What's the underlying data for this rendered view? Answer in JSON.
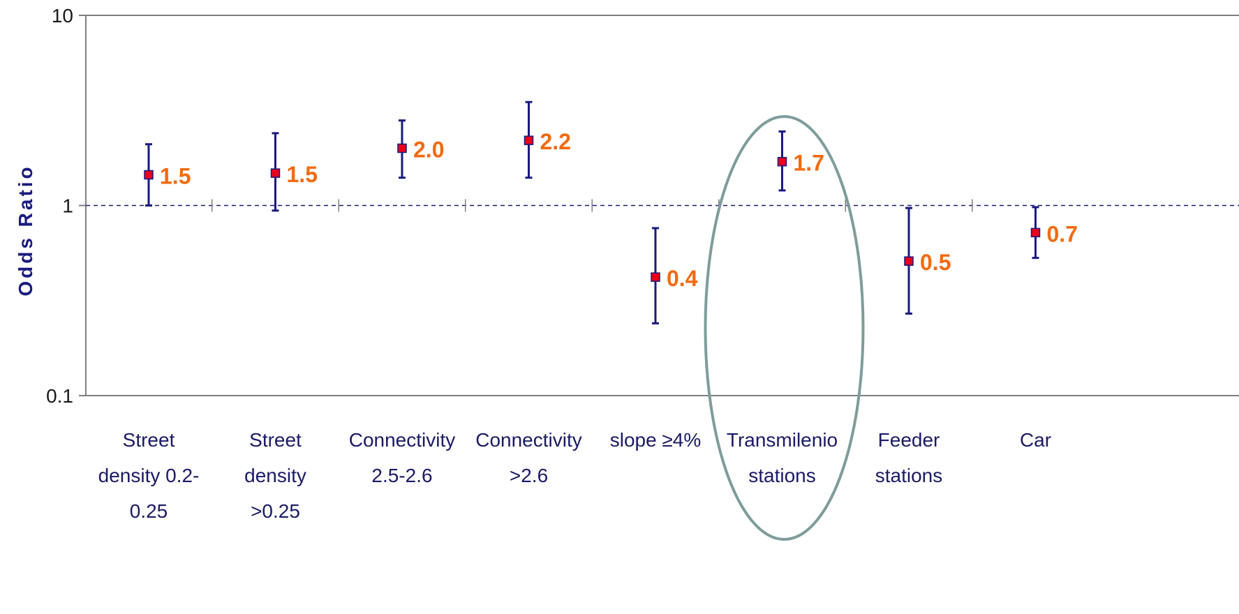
{
  "chart_data": {
    "type": "scatter",
    "title": "",
    "xlabel": "",
    "ylabel": "Odds Ratio",
    "yscale": "log",
    "ylim": [
      0.1,
      10
    ],
    "y_ticks": [
      "0.1",
      "1",
      "10"
    ],
    "reference_line": 1,
    "grid": false,
    "categories": [
      [
        "Street",
        "density 0.2-",
        "0.25"
      ],
      [
        "Street",
        "density",
        ">0.25"
      ],
      [
        "Connectivity",
        "2.5-2.6"
      ],
      [
        "Connectivity",
        ">2.6"
      ],
      [
        "slope ≥4%"
      ],
      [
        "Transmilenio",
        "stations"
      ],
      [
        "Feeder",
        "stations"
      ],
      [
        "Car"
      ]
    ],
    "series": [
      {
        "values": [
          1.45,
          1.48,
          2.0,
          2.2,
          0.42,
          1.7,
          0.51,
          0.72
        ],
        "lower": [
          1.0,
          0.94,
          1.4,
          1.4,
          0.24,
          1.2,
          0.27,
          0.53
        ],
        "upper": [
          2.1,
          2.4,
          2.8,
          3.5,
          0.76,
          2.45,
          0.97,
          0.98
        ],
        "labels": [
          "1.5",
          "1.5",
          "2.0",
          "2.2",
          "0.4",
          "1.7",
          "0.5",
          "0.7"
        ]
      }
    ],
    "highlight_category": 5,
    "colors": {
      "marker": "#e8001c",
      "marker_border": "#1a1a80",
      "error_bar": "#1a1a80",
      "data_label": "#f26a10",
      "axis": "#7f7f7f",
      "reference_line": "#1a1a80",
      "highlight_ellipse": "#7f9c9c"
    }
  }
}
